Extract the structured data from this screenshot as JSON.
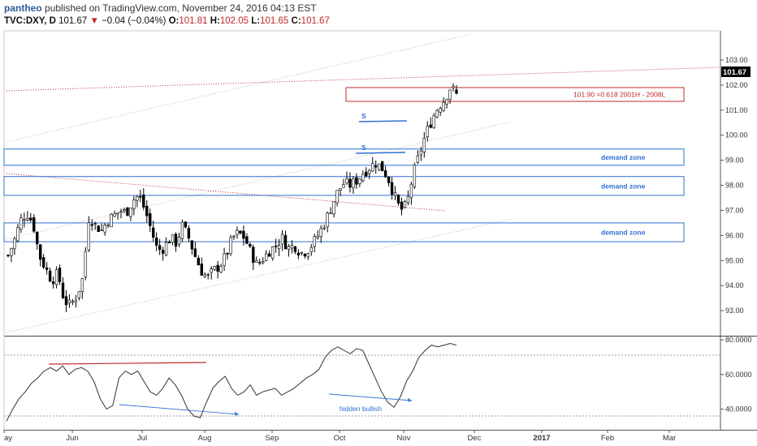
{
  "header": {
    "author": "pantheo",
    "published_text": "published on TradingView.com, November 24, 2016 04:13 EST",
    "symbol": "TVC:DXY, D",
    "last": "101.67",
    "arrow": "▼",
    "change": "−0.04 (−0.04%)",
    "open_label": "O:",
    "open": "101.81",
    "high_label": "H:",
    "high": "102.05",
    "low_label": "L:",
    "low": "101.65",
    "close_label": "C:",
    "close": "101.67"
  },
  "colors": {
    "up": "#ffffff",
    "down": "#000000",
    "wick": "#000000",
    "zone": "#2f6fd6",
    "fib": "#c0282a",
    "rsi": "#333333",
    "price_tag": "#000000"
  },
  "chart_data": [
    {
      "type": "candlestick",
      "y_ticks": [
        "103.00",
        "102.00",
        "101.00",
        "100.00",
        "99.00",
        "98.00",
        "97.00",
        "96.00",
        "95.00",
        "94.00",
        "93.00"
      ],
      "ylim": [
        92.0,
        104.1
      ],
      "x_labels": [
        "ay",
        "Jun",
        "Jul",
        "Aug",
        "Sep",
        "Oct",
        "Nov",
        "Dec",
        "2017",
        "Feb",
        "Mar"
      ],
      "last_price_tag": "101.67",
      "zones": [
        {
          "label": "demand zone",
          "low": 98.8,
          "high": 99.45
        },
        {
          "label": "demand zone",
          "low": 97.6,
          "high": 98.35
        },
        {
          "label": "demand zone",
          "low": 95.75,
          "high": 96.5
        }
      ],
      "fib_zone": {
        "label": "101.90 =0.618 2001H - 2008L",
        "low": 101.35,
        "high": 101.9
      },
      "annotations": [
        "S",
        "S"
      ],
      "path": [
        95.2,
        95.8,
        96.6,
        96.9,
        96.5,
        95.2,
        94.7,
        94.2,
        94.5,
        93.4,
        93.2,
        93.6,
        94.3,
        96.8,
        96.4,
        96.2,
        96.6,
        96.8,
        97.0,
        96.9,
        97.4,
        97.6,
        97.0,
        96.2,
        95.4,
        95.5,
        95.9,
        95.7,
        96.4,
        95.9,
        95.2,
        94.6,
        94.3,
        94.6,
        94.8,
        95.2,
        95.9,
        96.1,
        95.9,
        95.3,
        94.8,
        95.1,
        95.4,
        95.6,
        95.9,
        95.5,
        95.6,
        95.3,
        95.4,
        95.7,
        96.1,
        96.6,
        97.2,
        97.8,
        98.1,
        98.0,
        98.2,
        98.5,
        98.7,
        98.9,
        98.7,
        98.3,
        97.6,
        97.0,
        97.2,
        98.4,
        99.2,
        100.0,
        100.6,
        101.1,
        101.4,
        101.9,
        101.67
      ]
    },
    {
      "type": "line",
      "y_ticks": [
        "80.0000",
        "60.0000",
        "40.0000"
      ],
      "ylim": [
        28.5,
        81.5
      ],
      "annotations": [
        "hidden bullish"
      ],
      "values": [
        33,
        40,
        46,
        50,
        55,
        58,
        62,
        64,
        62,
        65,
        60,
        63,
        64,
        62,
        56,
        46,
        40,
        42,
        58,
        62,
        60,
        62,
        56,
        50,
        48,
        52,
        58,
        54,
        48,
        40,
        36,
        35,
        44,
        52,
        56,
        59,
        52,
        48,
        50,
        54,
        48,
        50,
        51,
        52,
        48,
        50,
        52,
        55,
        58,
        60,
        63,
        70,
        74,
        76,
        74,
        72,
        75,
        74,
        66,
        58,
        50,
        44,
        41,
        47,
        56,
        62,
        70,
        74,
        77,
        76,
        77,
        78,
        77
      ]
    }
  ]
}
